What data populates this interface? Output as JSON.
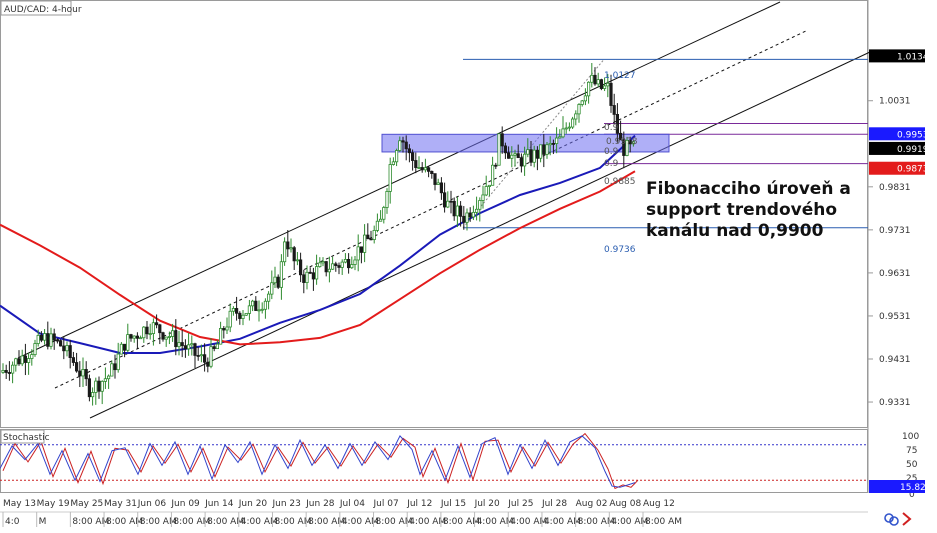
{
  "chart_data": {
    "type": "candlestick",
    "title": "AUD/CAD: 4-hour",
    "y_range": [
      0.9273,
      1.0265
    ],
    "price_ticks": [
      "1.0031",
      "0.9831",
      "0.9731",
      "0.9631",
      "0.9531",
      "0.9431",
      "0.9331"
    ],
    "current_price": "0.9919",
    "price_tags": [
      {
        "label": "1.0134",
        "value": 1.0134,
        "color": "#000000"
      },
      {
        "label": "0.9953",
        "value": 0.9953,
        "color": "#1a1aff"
      },
      {
        "label": "0.9919",
        "value": 0.9919,
        "color": "#000000"
      },
      {
        "label": "0.9873",
        "value": 0.9873,
        "color": "#e31b1b"
      }
    ],
    "date_labels": [
      "May 13",
      "May 19",
      "May 25",
      "May 31",
      "Jun 06",
      "Jun 09",
      "Jun 14",
      "Jun 20",
      "Jun 23",
      "Jun 28",
      "Jul 04",
      "Jul 07",
      "Jul 12",
      "Jul 15",
      "Jul 20",
      "Jul 25",
      "Jul 28",
      "Aug 02",
      "Aug 08",
      "Aug 12"
    ],
    "time_labels": [
      "4:0",
      "M",
      "8:00 AM",
      "8:00 AM",
      "8:00 AM",
      "8:00 AM",
      "8:00 AM",
      "4:00 AM",
      "8:00 AM",
      "8:00 AM",
      "4:00 AM",
      "8:00 AM",
      "4:00 AM",
      "8:00 AM",
      "4:00 AM",
      "4:00 AM",
      "4:00 AM",
      "8:00 AM",
      "4:00 AM",
      "8:00 AM"
    ],
    "fibonacci": {
      "high": "1.0127",
      "low": "0.9736",
      "levels": [
        {
          "label": "0.9978",
          "value": 0.9978
        },
        {
          "label": "0.9885",
          "value": 0.9885
        }
      ],
      "partial_levels": [
        "0.9",
        "0.9",
        "0.9"
      ]
    },
    "support_zone": [
      0.9912,
      0.9953
    ],
    "annotation": [
      "Fibonacciho úroveň a",
      "support trendového",
      "kanálu nad 0,9900"
    ],
    "moving_averages": [
      {
        "color": "#1a1ab8",
        "points": [
          [
            0,
            0.9555
          ],
          [
            40,
            0.949
          ],
          [
            80,
            0.9468
          ],
          [
            120,
            0.9445
          ],
          [
            160,
            0.9445
          ],
          [
            200,
            0.946
          ],
          [
            240,
            0.9478
          ],
          [
            280,
            0.9515
          ],
          [
            320,
            0.9545
          ],
          [
            360,
            0.9582
          ],
          [
            400,
            0.9648
          ],
          [
            440,
            0.972
          ],
          [
            480,
            0.977
          ],
          [
            520,
            0.9812
          ],
          [
            560,
            0.984
          ],
          [
            600,
            0.9875
          ],
          [
            635,
            0.995
          ]
        ]
      },
      {
        "color": "#e31b1b",
        "points": [
          [
            0,
            0.9743
          ],
          [
            40,
            0.9695
          ],
          [
            80,
            0.9643
          ],
          [
            120,
            0.958
          ],
          [
            160,
            0.952
          ],
          [
            200,
            0.9482
          ],
          [
            240,
            0.9465
          ],
          [
            280,
            0.947
          ],
          [
            320,
            0.948
          ],
          [
            360,
            0.951
          ],
          [
            400,
            0.957
          ],
          [
            440,
            0.963
          ],
          [
            480,
            0.9685
          ],
          [
            520,
            0.9735
          ],
          [
            560,
            0.978
          ],
          [
            600,
            0.982
          ],
          [
            635,
            0.9867
          ]
        ]
      }
    ],
    "price_path": [
      [
        0,
        0.94
      ],
      [
        25,
        0.944
      ],
      [
        45,
        0.948
      ],
      [
        60,
        0.9465
      ],
      [
        75,
        0.942
      ],
      [
        90,
        0.936
      ],
      [
        110,
        0.9395
      ],
      [
        125,
        0.947
      ],
      [
        150,
        0.951
      ],
      [
        170,
        0.9485
      ],
      [
        190,
        0.945
      ],
      [
        205,
        0.9425
      ],
      [
        215,
        0.945
      ],
      [
        225,
        0.951
      ],
      [
        235,
        0.954
      ],
      [
        250,
        0.9545
      ],
      [
        265,
        0.957
      ],
      [
        280,
        0.962
      ],
      [
        285,
        0.972
      ],
      [
        295,
        0.965
      ],
      [
        305,
        0.962
      ],
      [
        320,
        0.964
      ],
      [
        345,
        0.9655
      ],
      [
        365,
        0.97
      ],
      [
        380,
        0.974
      ],
      [
        390,
        0.988
      ],
      [
        400,
        0.9955
      ],
      [
        410,
        0.99
      ],
      [
        420,
        0.9875
      ],
      [
        435,
        0.9845
      ],
      [
        450,
        0.978
      ],
      [
        465,
        0.976
      ],
      [
        480,
        0.981
      ],
      [
        492,
        0.986
      ],
      [
        500,
        0.9945
      ],
      [
        515,
        0.989
      ],
      [
        530,
        0.99
      ],
      [
        545,
        0.9915
      ],
      [
        560,
        0.994
      ],
      [
        575,
        1.001
      ],
      [
        590,
        1.008
      ],
      [
        600,
        1.006
      ],
      [
        608,
        1.006
      ],
      [
        615,
        0.998
      ],
      [
        622,
        0.992
      ],
      [
        635,
        0.9919
      ]
    ],
    "stochastic": {
      "label": "Stochastic",
      "value": "15.82",
      "scale_labels": [
        "100",
        "75",
        "50",
        "25",
        "0"
      ],
      "upper_level": 80,
      "lower_level": 20,
      "k_line": [
        [
          0,
          40
        ],
        [
          12,
          78
        ],
        [
          25,
          55
        ],
        [
          38,
          82
        ],
        [
          50,
          30
        ],
        [
          62,
          70
        ],
        [
          75,
          20
        ],
        [
          88,
          65
        ],
        [
          100,
          18
        ],
        [
          112,
          70
        ],
        [
          125,
          75
        ],
        [
          138,
          30
        ],
        [
          150,
          82
        ],
        [
          162,
          45
        ],
        [
          175,
          85
        ],
        [
          188,
          30
        ],
        [
          200,
          78
        ],
        [
          212,
          22
        ],
        [
          225,
          80
        ],
        [
          238,
          50
        ],
        [
          250,
          85
        ],
        [
          262,
          30
        ],
        [
          275,
          80
        ],
        [
          288,
          40
        ],
        [
          300,
          88
        ],
        [
          312,
          45
        ],
        [
          325,
          80
        ],
        [
          338,
          40
        ],
        [
          350,
          82
        ],
        [
          362,
          45
        ],
        [
          375,
          85
        ],
        [
          388,
          55
        ],
        [
          400,
          95
        ],
        [
          412,
          72
        ],
        [
          420,
          30
        ],
        [
          432,
          70
        ],
        [
          445,
          20
        ],
        [
          458,
          78
        ],
        [
          470,
          25
        ],
        [
          482,
          82
        ],
        [
          495,
          92
        ],
        [
          508,
          30
        ],
        [
          520,
          80
        ],
        [
          532,
          40
        ],
        [
          545,
          88
        ],
        [
          558,
          45
        ],
        [
          570,
          85
        ],
        [
          582,
          95
        ],
        [
          595,
          75
        ],
        [
          605,
          35
        ],
        [
          612,
          10
        ],
        [
          620,
          8
        ],
        [
          628,
          12
        ],
        [
          635,
          16
        ]
      ]
    }
  }
}
